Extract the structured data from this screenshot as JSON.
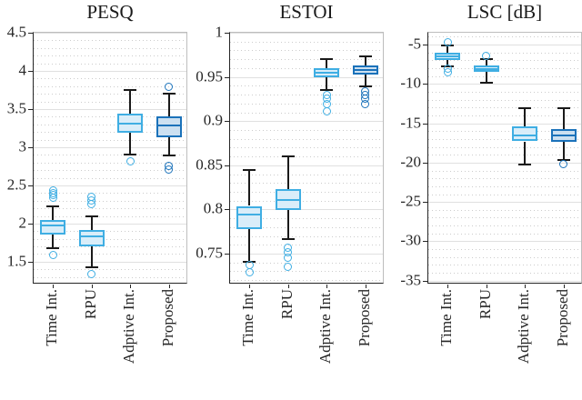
{
  "figure": {
    "background": "#ffffff"
  },
  "styles": {
    "light": {
      "edge": "#3FAEE3",
      "fill": "#D9EDF9"
    },
    "dark": {
      "edge": "#1B72BA",
      "fill": "#CCE0F1"
    },
    "whisker_color": "#1a1a1a",
    "spine_dark": "#262626",
    "spine_light": "#bdbdbd",
    "grid_major": "#e0e0e0",
    "grid_minor": "#cccccc",
    "text_color": "#262626"
  },
  "chart_data": [
    {
      "type": "boxplot",
      "title": "PESQ",
      "categories": [
        "Time Int.",
        "RPU",
        "Adptive Int.",
        "Proposed"
      ],
      "ylim": [
        1.2,
        4.5
      ],
      "yticks": [
        1.5,
        2,
        2.5,
        3,
        3.5,
        4,
        4.5
      ],
      "ytick_labels": [
        "1.5",
        "2",
        "2.5",
        "3",
        "3.5",
        "4",
        "4.5"
      ],
      "minor_step": 0.1,
      "grid": "major solid, minor dotted, horizontal only",
      "boxes": [
        {
          "category": "Time Int.",
          "style": "light",
          "whisker_low": 1.68,
          "q1": 1.86,
          "median": 1.98,
          "q3": 2.05,
          "whisker_high": 2.23,
          "outliers": [
            2.43,
            2.4,
            2.37,
            2.34,
            1.59
          ]
        },
        {
          "category": "RPU",
          "style": "light",
          "whisker_low": 1.43,
          "q1": 1.7,
          "median": 1.83,
          "q3": 1.91,
          "whisker_high": 2.09,
          "outliers": [
            2.35,
            2.3,
            2.26,
            1.34
          ]
        },
        {
          "category": "Adptive Int.",
          "style": "light",
          "whisker_low": 2.91,
          "q1": 3.19,
          "median": 3.31,
          "q3": 3.44,
          "whisker_high": 3.75,
          "outliers": [
            2.82
          ]
        },
        {
          "category": "Proposed",
          "style": "dark",
          "whisker_low": 2.89,
          "q1": 3.13,
          "median": 3.28,
          "q3": 3.4,
          "whisker_high": 3.7,
          "outliers": [
            3.79,
            2.76,
            2.71
          ]
        }
      ]
    },
    {
      "type": "boxplot",
      "title": "ESTOI",
      "categories": [
        "Time Int.",
        "RPU",
        "Adptive Int.",
        "Proposed"
      ],
      "ylim": [
        0.715,
        1.0
      ],
      "yticks": [
        0.75,
        0.8,
        0.85,
        0.9,
        0.95,
        1
      ],
      "ytick_labels": [
        "0.75",
        "0.8",
        "0.85",
        "0.9",
        "0.95",
        "1"
      ],
      "minor_step": 0.01,
      "grid": "major solid, minor dotted, horizontal only",
      "boxes": [
        {
          "category": "Time Int.",
          "style": "light",
          "whisker_low": 0.741,
          "q1": 0.778,
          "median": 0.794,
          "q3": 0.804,
          "whisker_high": 0.845,
          "outliers": [
            0.737,
            0.729
          ]
        },
        {
          "category": "RPU",
          "style": "light",
          "whisker_low": 0.766,
          "q1": 0.799,
          "median": 0.811,
          "q3": 0.823,
          "whisker_high": 0.86,
          "outliers": [
            0.757,
            0.752,
            0.745,
            0.735
          ]
        },
        {
          "category": "Adptive Int.",
          "style": "light",
          "whisker_low": 0.935,
          "q1": 0.95,
          "median": 0.955,
          "q3": 0.96,
          "whisker_high": 0.97,
          "outliers": [
            0.93,
            0.925,
            0.919,
            0.911
          ]
        },
        {
          "category": "Proposed",
          "style": "dark",
          "whisker_low": 0.939,
          "q1": 0.953,
          "median": 0.958,
          "q3": 0.963,
          "whisker_high": 0.973,
          "outliers": [
            0.934,
            0.93,
            0.925,
            0.919
          ]
        }
      ]
    },
    {
      "type": "boxplot",
      "title": "LSC [dB]",
      "categories": [
        "Time Int.",
        "RPU",
        "Adptive Int.",
        "Proposed"
      ],
      "ylim": [
        -35.5,
        -3.5
      ],
      "yticks": [
        -35,
        -30,
        -25,
        -20,
        -15,
        -10,
        -5
      ],
      "ytick_labels": [
        "-35",
        "-30",
        "-25",
        "-20",
        "-15",
        "-10",
        "-5"
      ],
      "minor_step": 1,
      "grid": "major solid, minor dotted, horizontal only",
      "boxes": [
        {
          "category": "Time Int.",
          "style": "light",
          "whisker_low": -7.8,
          "q1": -7.0,
          "median": -6.45,
          "q3": -6.05,
          "whisker_high": -5.1,
          "outliers": [
            -4.7,
            -8.0,
            -8.5
          ]
        },
        {
          "category": "RPU",
          "style": "light",
          "whisker_low": -9.8,
          "q1": -8.5,
          "median": -8.1,
          "q3": -7.7,
          "whisker_high": -6.9,
          "outliers": [
            -6.4
          ]
        },
        {
          "category": "Adptive Int.",
          "style": "light",
          "whisker_low": -20.3,
          "q1": -17.3,
          "median": -16.5,
          "q3": -15.4,
          "whisker_high": -13.1,
          "outliers": []
        },
        {
          "category": "Proposed",
          "style": "dark",
          "whisker_low": -19.7,
          "q1": -17.4,
          "median": -16.6,
          "q3": -15.7,
          "whisker_high": -13.1,
          "outliers": [
            -20.2
          ]
        }
      ]
    }
  ]
}
